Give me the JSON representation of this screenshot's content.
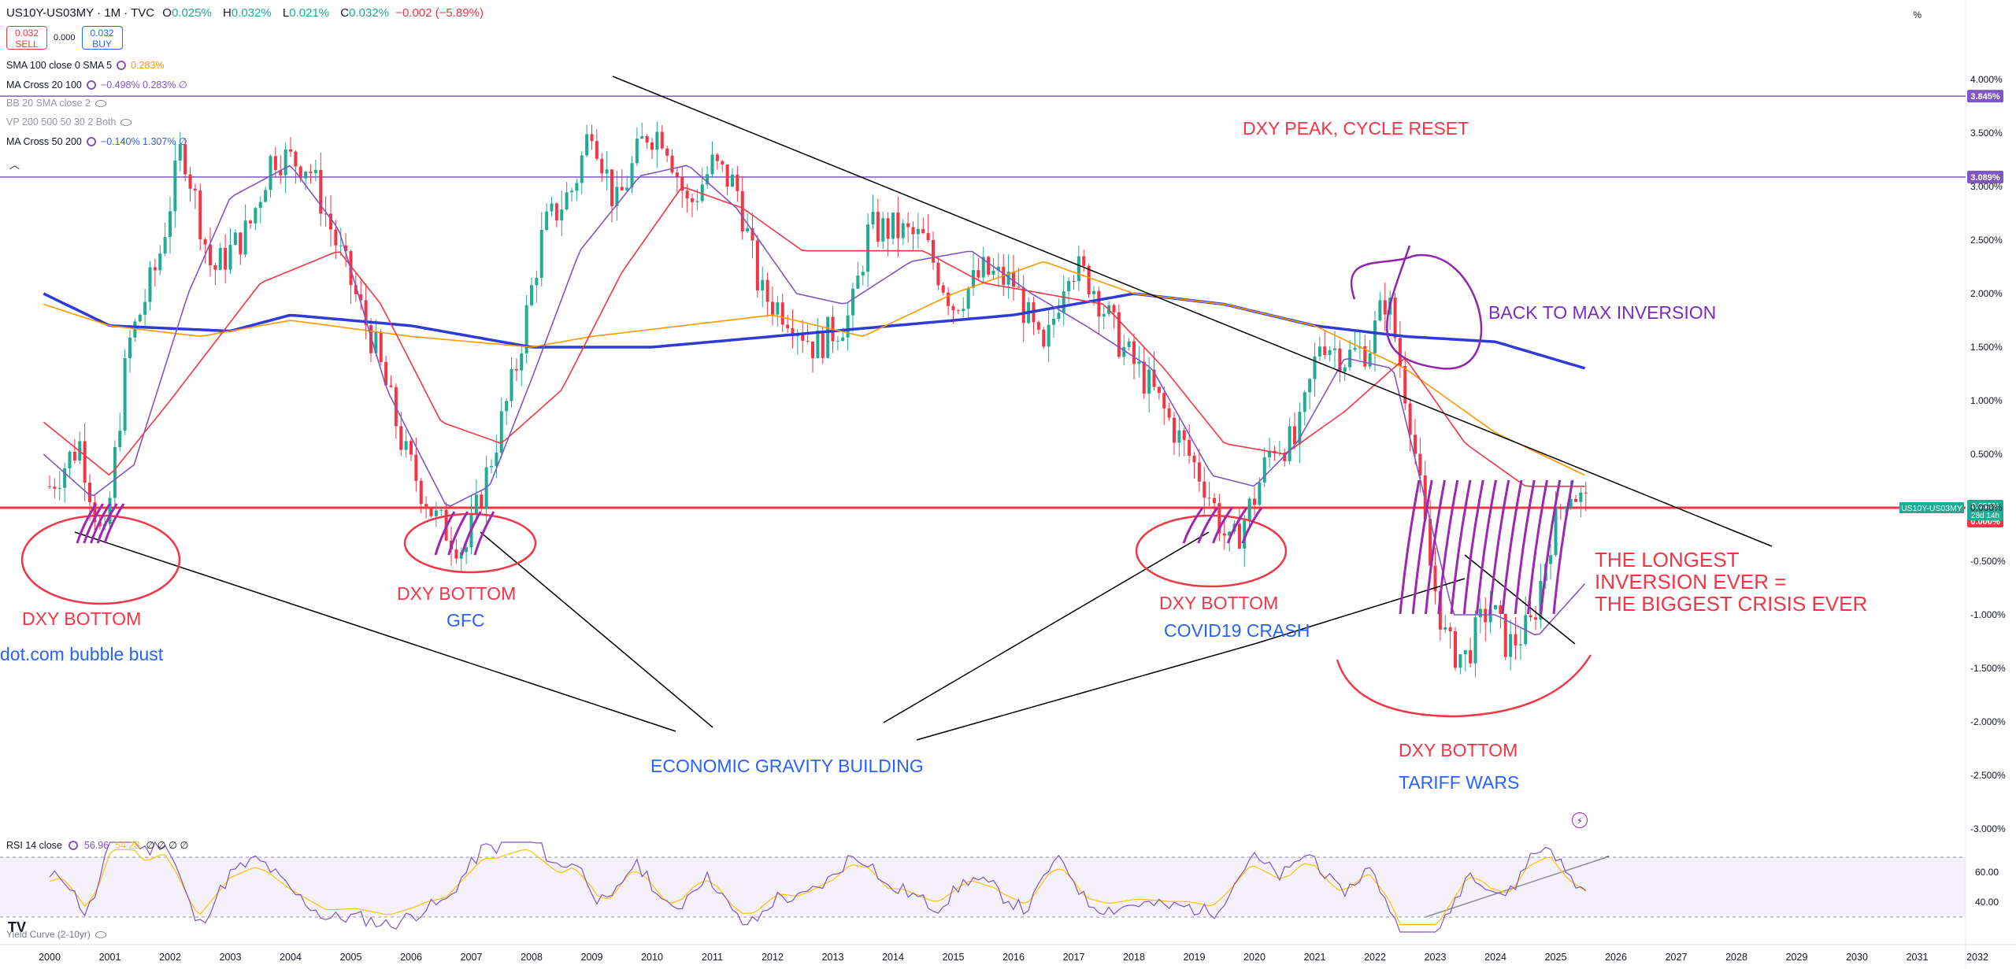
{
  "header": {
    "symbol": "US10Y-US03MY · 1M · TVC",
    "ohlc": [
      {
        "label": "O",
        "value": "0.025%"
      },
      {
        "label": "H",
        "value": "0.032%"
      },
      {
        "label": "L",
        "value": "0.021%"
      },
      {
        "label": "C",
        "value": "0.032%"
      }
    ],
    "change": "−0.002 (−5.89%)",
    "sell_price": "0.032",
    "sell_label": "SELL",
    "spread": "0.000",
    "buy_price": "0.032",
    "buy_label": "BUY",
    "pct_unit": "%"
  },
  "indicators": [
    {
      "name": "SMA 100 close 0 SMA 5",
      "values": "0.283%",
      "color": "#ff9800",
      "dim": false
    },
    {
      "name": "MA Cross 20 100",
      "values": "−0.498%  0.283%  ∅",
      "color": "#131722",
      "dim": false
    },
    {
      "name": "BB 20 SMA close 2",
      "values": "",
      "color": "#9598a1",
      "dim": true
    },
    {
      "name": "VP 200 500 50 30 2 Both",
      "values": "",
      "color": "#9598a1",
      "dim": true
    },
    {
      "name": "MA Cross 50 200",
      "values": "−0.140%  1.307%  ∅",
      "color": "#131722",
      "dim": false
    }
  ],
  "rsi": {
    "name": "RSI 14 close",
    "value1": "56.96",
    "value2": "54.28",
    "extra": "∅ ∅ ∅ ∅"
  },
  "yield_curve_label": "Yield Curve (2-10yr)",
  "price_axis_labels": {
    "symbol_tag": "US10Y-US03MY",
    "last": "0.032%",
    "countdown": "28d 14h",
    "zero": "0.000%",
    "upper_line": "3.845%",
    "second_line": "3.089%"
  },
  "annotations": {
    "dxy_peak": "DXY PEAK, CYCLE RESET",
    "back_to_max": "BACK TO MAX INVERSION",
    "dxy_bottom_1": "DXY BOTTOM",
    "dotcom": "dot.com bubble bust",
    "dxy_bottom_2": "DXY BOTTOM",
    "gfc": "GFC",
    "dxy_bottom_3": "DXY BOTTOM",
    "covid": "COVID19 CRASH",
    "dxy_bottom_4": "DXY BOTTOM",
    "tariff": "TARIFF WARS",
    "gravity": "ECONOMIC GRAVITY BUILDING",
    "longest_1": "THE LONGEST",
    "longest_2": "INVERSION EVER =",
    "longest_3": "THE BIGGEST CRISIS EVER"
  },
  "colors": {
    "up": "#22ab94",
    "down": "#f23645",
    "sma100": "#2e3bd6",
    "ma_orange": "#ff9800",
    "ma_red": "#f23645",
    "ma_purple": "#7e57c2",
    "annotation_red": "#f23645",
    "annotation_blue": "#2962ff",
    "annotation_purple": "#7b2cbf"
  },
  "chart_data": {
    "type": "candlestick",
    "title": "US10Y-US03MY",
    "interval": "1M",
    "y_unit": "%",
    "ylim": [
      -3.0,
      4.0
    ],
    "y_ticks": [
      "4.000%",
      "3.500%",
      "3.000%",
      "2.500%",
      "2.000%",
      "1.500%",
      "1.000%",
      "0.500%",
      "0.000%",
      "-0.500%",
      "-1.000%",
      "-1.500%",
      "-2.000%",
      "-2.500%",
      "-3.000%"
    ],
    "x_ticks": [
      "2000",
      "2001",
      "2002",
      "2003",
      "2004",
      "2005",
      "2006",
      "2007",
      "2008",
      "2009",
      "2010",
      "2011",
      "2012",
      "2013",
      "2014",
      "2015",
      "2016",
      "2017",
      "2018",
      "2019",
      "2020",
      "2021",
      "2022",
      "2023",
      "2024",
      "2025",
      "2026",
      "2027",
      "2028",
      "2029",
      "2030",
      "2031",
      "2032"
    ],
    "horizontal_lines": [
      3.845,
      3.089,
      0.0
    ],
    "series": [
      {
        "name": "US10Y-US03MY",
        "type": "candles",
        "keyframes": [
          [
            2000.0,
            0.2
          ],
          [
            2000.5,
            0.6
          ],
          [
            2000.9,
            -0.4
          ],
          [
            2001.3,
            1.5
          ],
          [
            2001.8,
            2.3
          ],
          [
            2002.2,
            3.4
          ],
          [
            2002.7,
            2.2
          ],
          [
            2003.3,
            2.6
          ],
          [
            2003.7,
            3.3
          ],
          [
            2004.3,
            3.2
          ],
          [
            2004.8,
            2.4
          ],
          [
            2005.4,
            1.5
          ],
          [
            2005.9,
            0.5
          ],
          [
            2006.4,
            -0.1
          ],
          [
            2006.9,
            -0.4
          ],
          [
            2007.3,
            0.4
          ],
          [
            2007.7,
            1.2
          ],
          [
            2008.2,
            2.6
          ],
          [
            2008.7,
            3.0
          ],
          [
            2009.0,
            3.6
          ],
          [
            2009.4,
            2.8
          ],
          [
            2009.9,
            3.5
          ],
          [
            2010.2,
            3.5
          ],
          [
            2010.6,
            2.8
          ],
          [
            2011.0,
            3.2
          ],
          [
            2011.4,
            3.0
          ],
          [
            2011.8,
            2.0
          ],
          [
            2012.3,
            1.8
          ],
          [
            2012.7,
            1.5
          ],
          [
            2013.3,
            1.8
          ],
          [
            2013.6,
            2.6
          ],
          [
            2014.0,
            2.6
          ],
          [
            2014.5,
            2.5
          ],
          [
            2015.0,
            1.9
          ],
          [
            2015.5,
            2.2
          ],
          [
            2016.0,
            2.1
          ],
          [
            2016.5,
            1.4
          ],
          [
            2016.9,
            2.3
          ],
          [
            2017.3,
            2.1
          ],
          [
            2017.8,
            1.5
          ],
          [
            2018.3,
            1.1
          ],
          [
            2018.8,
            0.6
          ],
          [
            2019.2,
            0.2
          ],
          [
            2019.6,
            -0.4
          ],
          [
            2020.0,
            0.1
          ],
          [
            2020.3,
            0.6
          ],
          [
            2020.7,
            0.6
          ],
          [
            2021.1,
            1.6
          ],
          [
            2021.5,
            1.4
          ],
          [
            2021.9,
            1.5
          ],
          [
            2022.2,
            2.0
          ],
          [
            2022.6,
            0.8
          ],
          [
            2022.9,
            -0.5
          ],
          [
            2023.2,
            -1.3
          ],
          [
            2023.5,
            -1.4
          ],
          [
            2023.9,
            -0.9
          ],
          [
            2024.2,
            -1.3
          ],
          [
            2024.6,
            -1.1
          ],
          [
            2024.9,
            -0.3
          ],
          [
            2025.2,
            0.2
          ],
          [
            2025.5,
            0.032
          ]
        ]
      },
      {
        "name": "SMA 100",
        "type": "line",
        "keyframes": [
          [
            1999.9,
            2.0
          ],
          [
            2001.0,
            1.7
          ],
          [
            2003.0,
            1.65
          ],
          [
            2004.0,
            1.8
          ],
          [
            2006.0,
            1.7
          ],
          [
            2008.0,
            1.5
          ],
          [
            2010.0,
            1.5
          ],
          [
            2012.0,
            1.6
          ],
          [
            2014.0,
            1.7
          ],
          [
            2016.0,
            1.8
          ],
          [
            2018.0,
            2.0
          ],
          [
            2019.5,
            1.9
          ],
          [
            2021.0,
            1.7
          ],
          [
            2022.5,
            1.6
          ],
          [
            2024.0,
            1.55
          ],
          [
            2025.5,
            1.3
          ]
        ]
      },
      {
        "name": "MA orange",
        "type": "line",
        "keyframes": [
          [
            1999.9,
            1.9
          ],
          [
            2001.0,
            1.7
          ],
          [
            2002.5,
            1.6
          ],
          [
            2004.0,
            1.75
          ],
          [
            2006.0,
            1.6
          ],
          [
            2008.0,
            1.5
          ],
          [
            2009.0,
            1.6
          ],
          [
            2010.5,
            1.7
          ],
          [
            2012.0,
            1.8
          ],
          [
            2013.5,
            1.6
          ],
          [
            2015.0,
            2.0
          ],
          [
            2016.5,
            2.3
          ],
          [
            2018.0,
            2.0
          ],
          [
            2019.5,
            1.9
          ],
          [
            2021.0,
            1.7
          ],
          [
            2022.5,
            1.3
          ],
          [
            2024.0,
            0.7
          ],
          [
            2025.5,
            0.3
          ]
        ]
      },
      {
        "name": "MA red",
        "type": "line",
        "keyframes": [
          [
            1999.9,
            0.8
          ],
          [
            2001.0,
            0.3
          ],
          [
            2002.0,
            1.0
          ],
          [
            2003.5,
            2.1
          ],
          [
            2004.8,
            2.4
          ],
          [
            2005.5,
            1.9
          ],
          [
            2006.5,
            0.8
          ],
          [
            2007.5,
            0.6
          ],
          [
            2008.5,
            1.1
          ],
          [
            2009.5,
            2.2
          ],
          [
            2010.5,
            3.0
          ],
          [
            2011.5,
            2.8
          ],
          [
            2012.5,
            2.4
          ],
          [
            2013.5,
            2.4
          ],
          [
            2014.5,
            2.4
          ],
          [
            2015.5,
            2.1
          ],
          [
            2016.5,
            2.0
          ],
          [
            2017.5,
            1.9
          ],
          [
            2018.5,
            1.3
          ],
          [
            2019.5,
            0.6
          ],
          [
            2020.5,
            0.5
          ],
          [
            2021.5,
            0.9
          ],
          [
            2022.5,
            1.4
          ],
          [
            2023.5,
            0.6
          ],
          [
            2024.5,
            0.2
          ],
          [
            2025.5,
            0.2
          ]
        ]
      },
      {
        "name": "MA purple",
        "type": "line",
        "keyframes": [
          [
            1999.9,
            0.5
          ],
          [
            2000.7,
            0.1
          ],
          [
            2001.4,
            0.4
          ],
          [
            2002.3,
            2.0
          ],
          [
            2003.0,
            2.9
          ],
          [
            2004.0,
            3.2
          ],
          [
            2004.8,
            2.6
          ],
          [
            2005.6,
            1.1
          ],
          [
            2006.6,
            0.0
          ],
          [
            2007.3,
            0.2
          ],
          [
            2008.0,
            1.2
          ],
          [
            2008.8,
            2.4
          ],
          [
            2009.8,
            3.1
          ],
          [
            2010.6,
            3.2
          ],
          [
            2011.4,
            2.8
          ],
          [
            2012.4,
            2.0
          ],
          [
            2013.2,
            1.9
          ],
          [
            2014.3,
            2.3
          ],
          [
            2015.3,
            2.4
          ],
          [
            2016.3,
            2.0
          ],
          [
            2017.2,
            1.7
          ],
          [
            2018.3,
            1.3
          ],
          [
            2019.3,
            0.3
          ],
          [
            2020.0,
            0.2
          ],
          [
            2020.7,
            0.6
          ],
          [
            2021.5,
            1.4
          ],
          [
            2022.3,
            1.3
          ],
          [
            2023.3,
            -1.0
          ],
          [
            2024.0,
            -1.0
          ],
          [
            2024.7,
            -1.2
          ],
          [
            2025.5,
            -0.7
          ]
        ]
      }
    ],
    "rsi_levels": [
      60.0,
      40.0
    ]
  }
}
